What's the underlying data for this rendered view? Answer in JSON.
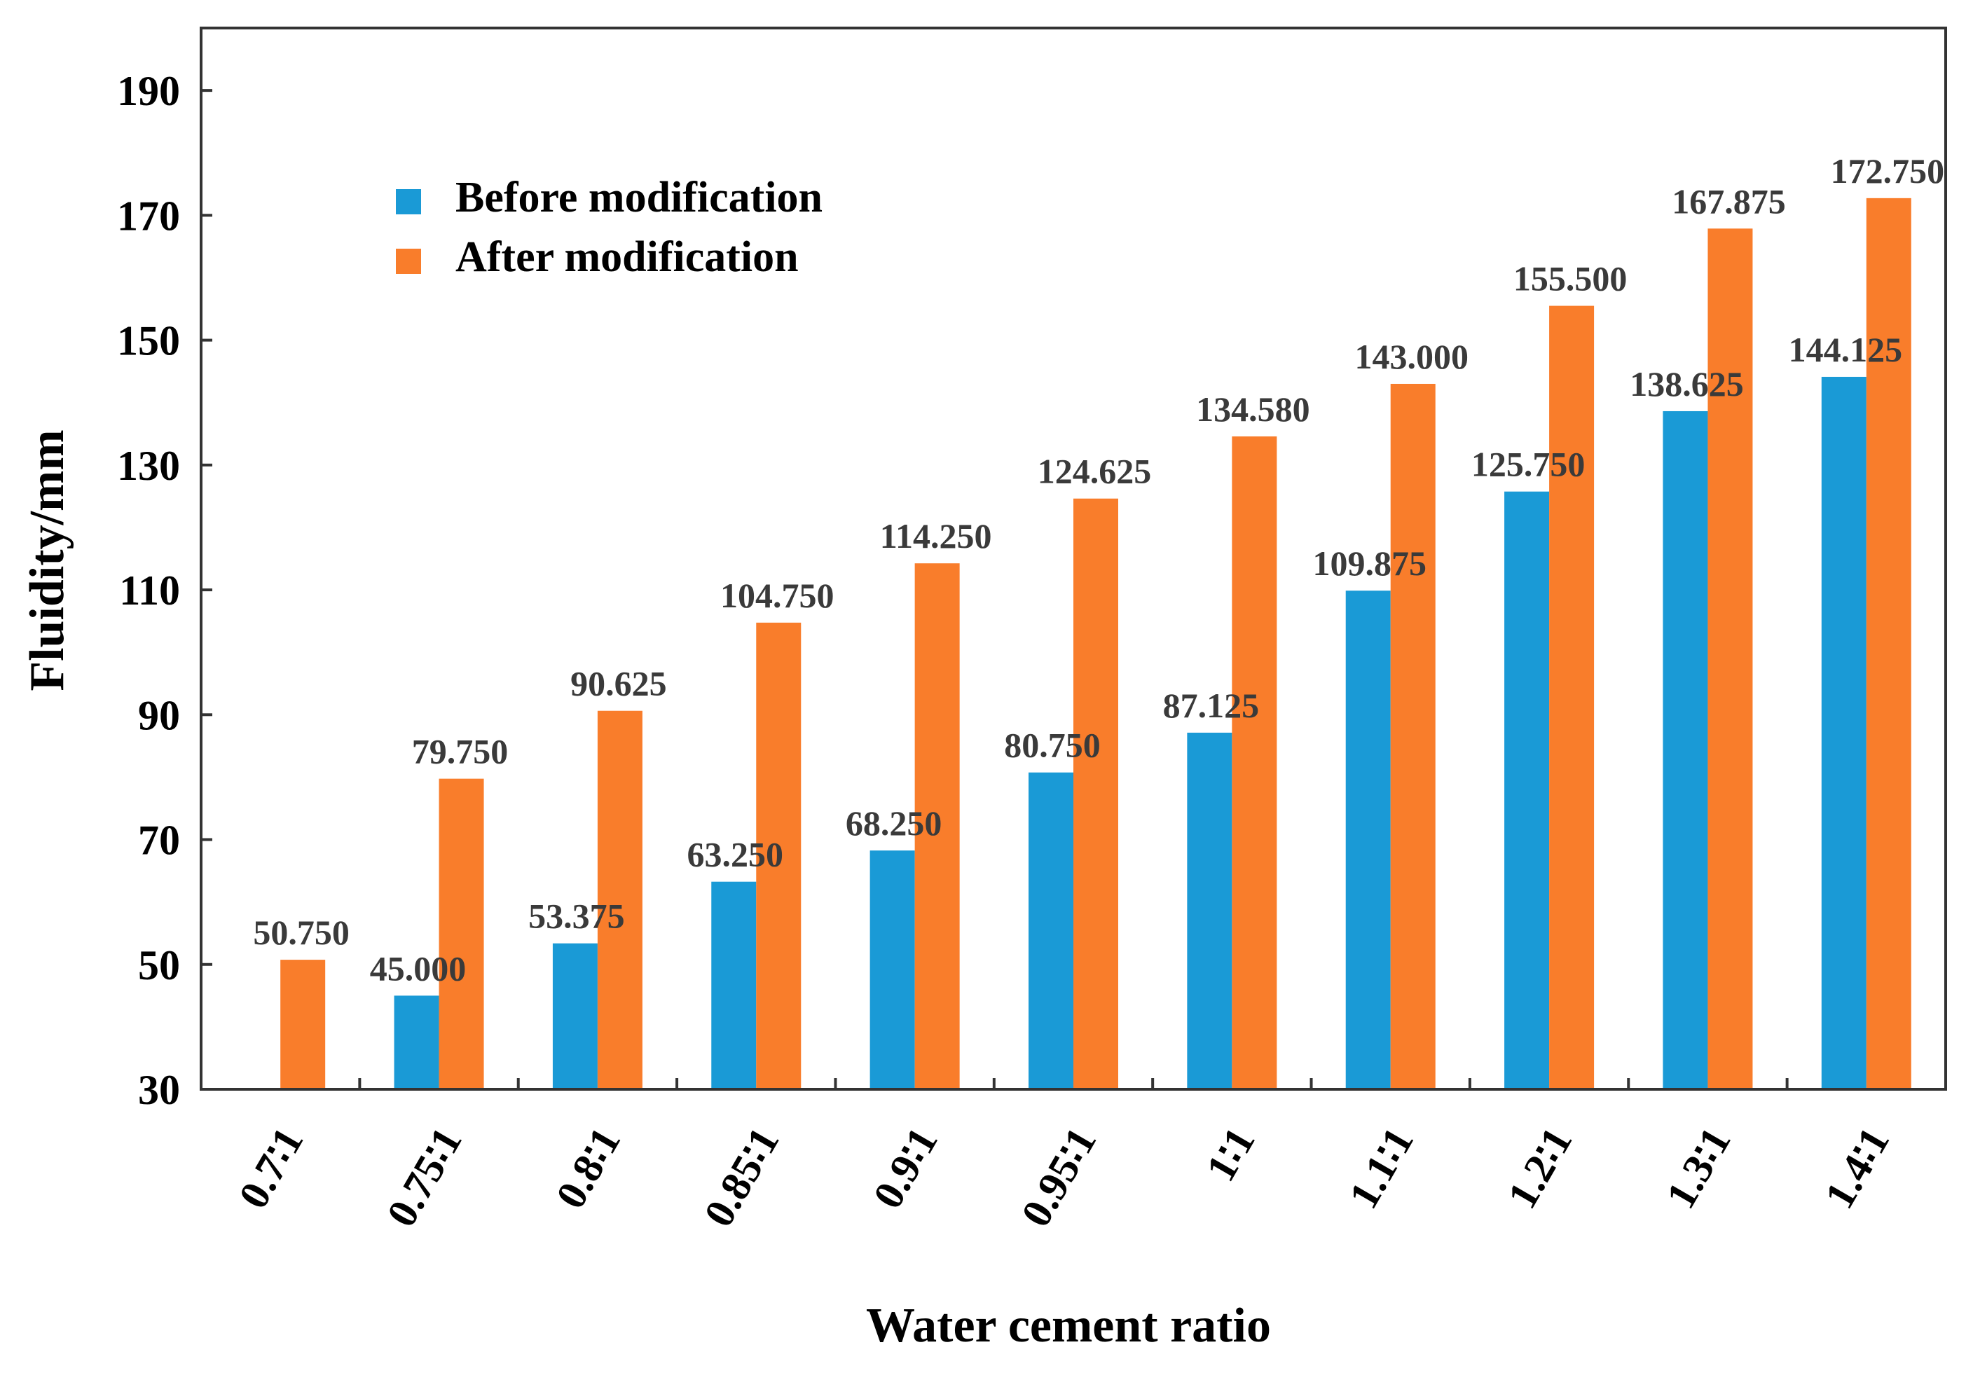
{
  "chart_data": {
    "type": "bar",
    "title": "",
    "xlabel": "Water cement ratio",
    "ylabel": "Fluidity/mm",
    "ylim": [
      30,
      200
    ],
    "yticks": [
      30,
      50,
      70,
      90,
      110,
      130,
      150,
      170,
      190
    ],
    "categories": [
      "0.7∶1",
      "0.75∶1",
      "0.8∶1",
      "0.85∶1",
      "0.9∶1",
      "0.95∶1",
      "1∶1",
      "1.1∶1",
      "1.2∶1",
      "1.3∶1",
      "1.4∶1"
    ],
    "series": [
      {
        "name": "Before modification",
        "color": "#1a9ad6",
        "values": [
          null,
          45.0,
          53.375,
          63.25,
          68.25,
          80.75,
          87.125,
          109.875,
          125.75,
          138.625,
          144.125
        ],
        "labels": [
          "",
          "45.000",
          "53.375",
          "63.250",
          "68.250",
          "80.750",
          "87.125",
          "109.875",
          "125.750",
          "138.625",
          "144.125"
        ]
      },
      {
        "name": "After modification",
        "color": "#f97d2b",
        "values": [
          50.75,
          79.75,
          90.625,
          104.75,
          114.25,
          124.625,
          134.58,
          143.0,
          155.5,
          167.875,
          172.75
        ],
        "labels": [
          "50.750",
          "79.750",
          "90.625",
          "104.750",
          "114.250",
          "124.625",
          "134.580",
          "143.000",
          "155.500",
          "167.875",
          "172.750"
        ]
      }
    ],
    "legend_position": "top-left",
    "grid": false
  }
}
